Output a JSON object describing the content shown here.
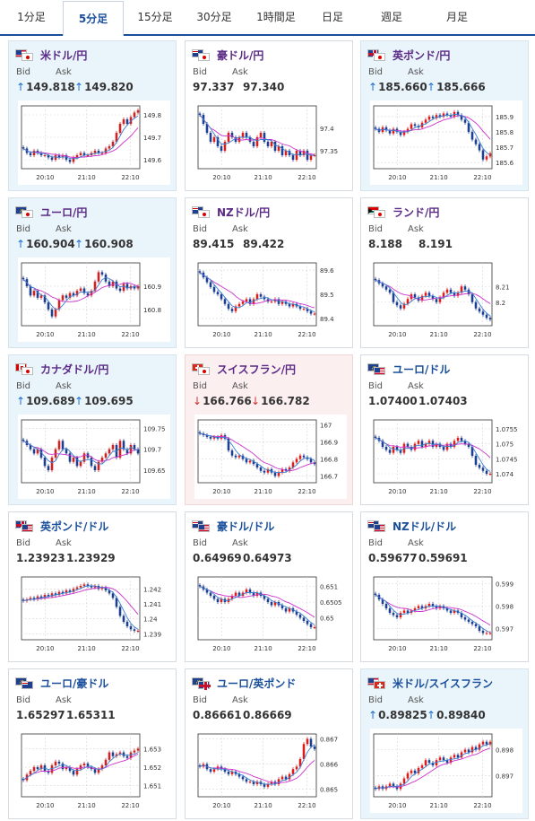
{
  "tabs": [
    {
      "label": "1分足",
      "active": false
    },
    {
      "label": "5分足",
      "active": true
    },
    {
      "label": "15分足",
      "active": false
    },
    {
      "label": "30分足",
      "active": false
    },
    {
      "label": "1時間足",
      "active": false
    },
    {
      "label": "日足",
      "active": false
    },
    {
      "label": "週足",
      "active": false
    },
    {
      "label": "月足",
      "active": false
    }
  ],
  "labels": {
    "bid": "Bid",
    "ask": "Ask"
  },
  "colors": {
    "up_arrow": "#1a6fd0",
    "down_arrow": "#d03030",
    "up_bg": "#eaf4fb",
    "down_bg": "#fbefef",
    "pair_purple": "#5a2a86",
    "pair_blue": "#1a4f9c",
    "candle_up": "#d62020",
    "candle_down": "#1d3f8f",
    "ma_line": "#cc33cc",
    "ma_short": "#3a7fd0"
  },
  "cards": [
    {
      "pair": "米ドル/円",
      "flags": [
        "us",
        "jp"
      ],
      "state": "up",
      "bid": "149.818",
      "ask": "149.820",
      "bid_arrow": "up",
      "ask_arrow": "up",
      "yticks": [
        "149.8",
        "149.7",
        "149.6"
      ],
      "xticks": [
        "20:10",
        "21:10",
        "22:10"
      ],
      "chart_data": {
        "type": "candlestick",
        "ylim": [
          149.56,
          149.84
        ],
        "close": [
          149.65,
          149.63,
          149.62,
          149.64,
          149.63,
          149.62,
          149.62,
          149.61,
          149.6,
          149.62,
          149.61,
          149.62,
          149.6,
          149.59,
          149.61,
          149.62,
          149.63,
          149.62,
          149.62,
          149.63,
          149.64,
          149.63,
          149.63,
          149.65,
          149.66,
          149.68,
          149.72,
          149.76,
          149.78,
          149.76,
          149.79,
          149.81,
          149.82
        ]
      }
    },
    {
      "pair": "豪ドル/円",
      "flags": [
        "au",
        "jp"
      ],
      "state": "none",
      "bid": "97.337",
      "ask": "97.340",
      "bid_arrow": "",
      "ask_arrow": "",
      "yticks": [
        "97.4",
        "97.35"
      ],
      "xticks": [
        "20:10",
        "21:10",
        "22:10"
      ],
      "chart_data": {
        "type": "candlestick",
        "ylim": [
          97.31,
          97.45
        ],
        "close": [
          97.43,
          97.41,
          97.39,
          97.37,
          97.38,
          97.36,
          97.35,
          97.37,
          97.39,
          97.38,
          97.37,
          97.38,
          97.39,
          97.38,
          97.37,
          97.36,
          97.38,
          97.39,
          97.37,
          97.36,
          97.37,
          97.35,
          97.36,
          97.34,
          97.35,
          97.34,
          97.33,
          97.35,
          97.34,
          97.35,
          97.33,
          97.34,
          97.34
        ]
      }
    },
    {
      "pair": "英ポンド/円",
      "flags": [
        "gb",
        "jp"
      ],
      "state": "up",
      "bid": "185.660",
      "ask": "185.666",
      "bid_arrow": "up",
      "ask_arrow": "up",
      "yticks": [
        "185.9",
        "185.8",
        "185.7",
        "185.6"
      ],
      "xticks": [
        "20:10",
        "21:10",
        "22:10"
      ],
      "chart_data": {
        "type": "candlestick",
        "ylim": [
          185.56,
          185.97
        ],
        "close": [
          185.82,
          185.8,
          185.83,
          185.81,
          185.79,
          185.82,
          185.8,
          185.78,
          185.8,
          185.82,
          185.85,
          185.84,
          185.83,
          185.86,
          185.88,
          185.9,
          185.89,
          185.91,
          185.9,
          185.92,
          185.91,
          185.9,
          185.93,
          185.91,
          185.88,
          185.86,
          185.8,
          185.75,
          185.72,
          185.68,
          185.62,
          185.64,
          185.66
        ]
      }
    },
    {
      "pair": "ユーロ/円",
      "flags": [
        "eu",
        "jp"
      ],
      "state": "up",
      "bid": "160.904",
      "ask": "160.908",
      "bid_arrow": "up",
      "ask_arrow": "up",
      "yticks": [
        "160.9",
        "160.8"
      ],
      "xticks": [
        "20:10",
        "21:10",
        "22:10"
      ],
      "chart_data": {
        "type": "candlestick",
        "ylim": [
          160.73,
          161.0
        ],
        "close": [
          160.93,
          160.9,
          160.86,
          160.88,
          160.85,
          160.86,
          160.83,
          160.8,
          160.77,
          160.8,
          160.84,
          160.86,
          160.85,
          160.87,
          160.86,
          160.88,
          160.89,
          160.87,
          160.86,
          160.88,
          160.92,
          160.96,
          160.95,
          160.92,
          160.9,
          160.92,
          160.89,
          160.88,
          160.91,
          160.89,
          160.9,
          160.89,
          160.9
        ]
      }
    },
    {
      "pair": "NZドル/円",
      "flags": [
        "nz",
        "jp"
      ],
      "state": "none",
      "bid": "89.415",
      "ask": "89.422",
      "bid_arrow": "",
      "ask_arrow": "",
      "yticks": [
        "89.6",
        "89.5",
        "89.4"
      ],
      "xticks": [
        "20:10",
        "21:10",
        "22:10"
      ],
      "chart_data": {
        "type": "candlestick",
        "ylim": [
          89.37,
          89.63
        ],
        "close": [
          89.59,
          89.57,
          89.55,
          89.53,
          89.51,
          89.5,
          89.48,
          89.46,
          89.44,
          89.43,
          89.45,
          89.46,
          89.47,
          89.48,
          89.46,
          89.48,
          89.5,
          89.49,
          89.48,
          89.47,
          89.47,
          89.48,
          89.46,
          89.47,
          89.46,
          89.45,
          89.46,
          89.45,
          89.44,
          89.44,
          89.43,
          89.42,
          89.42
        ]
      }
    },
    {
      "pair": "ランド/円",
      "flags": [
        "za",
        "jp"
      ],
      "state": "none",
      "bid": "8.188",
      "ask": "8.191",
      "bid_arrow": "",
      "ask_arrow": "",
      "yticks": [
        "8.21",
        "8.2"
      ],
      "xticks": [
        "20:10",
        "21:10",
        "22:10"
      ],
      "chart_data": {
        "type": "candlestick",
        "ylim": [
          8.185,
          8.225
        ],
        "close": [
          8.214,
          8.212,
          8.21,
          8.208,
          8.206,
          8.2,
          8.198,
          8.196,
          8.199,
          8.202,
          8.205,
          8.203,
          8.201,
          8.204,
          8.206,
          8.204,
          8.202,
          8.2,
          8.203,
          8.206,
          8.208,
          8.206,
          8.204,
          8.206,
          8.21,
          8.208,
          8.205,
          8.2,
          8.196,
          8.194,
          8.192,
          8.19,
          8.189
        ]
      }
    },
    {
      "pair": "カナダドル/円",
      "flags": [
        "ca",
        "jp"
      ],
      "state": "up",
      "bid": "109.689",
      "ask": "109.695",
      "bid_arrow": "up",
      "ask_arrow": "up",
      "yticks": [
        "109.75",
        "109.7",
        "109.65"
      ],
      "xticks": [
        "20:10",
        "21:10",
        "22:10"
      ],
      "chart_data": {
        "type": "candlestick",
        "ylim": [
          109.62,
          109.77
        ],
        "close": [
          109.72,
          109.71,
          109.7,
          109.69,
          109.7,
          109.68,
          109.66,
          109.65,
          109.68,
          109.7,
          109.72,
          109.7,
          109.69,
          109.67,
          109.68,
          109.66,
          109.67,
          109.69,
          109.68,
          109.66,
          109.65,
          109.67,
          109.68,
          109.69,
          109.7,
          109.71,
          109.68,
          109.72,
          109.7,
          109.69,
          109.71,
          109.7,
          109.69
        ]
      }
    },
    {
      "pair": "スイスフラン/円",
      "flags": [
        "ch",
        "jp"
      ],
      "state": "down",
      "bid": "166.766",
      "ask": "166.782",
      "bid_arrow": "down",
      "ask_arrow": "down",
      "yticks": [
        "167",
        "166.9",
        "166.8",
        "166.7"
      ],
      "xticks": [
        "20:10",
        "21:10",
        "22:10"
      ],
      "chart_data": {
        "type": "candlestick",
        "ylim": [
          166.66,
          167.03
        ],
        "close": [
          166.95,
          166.94,
          166.93,
          166.92,
          166.93,
          166.92,
          166.94,
          166.92,
          166.85,
          166.82,
          166.81,
          166.82,
          166.8,
          166.78,
          166.79,
          166.77,
          166.75,
          166.73,
          166.72,
          166.74,
          166.72,
          166.7,
          166.72,
          166.74,
          166.73,
          166.75,
          166.78,
          166.8,
          166.82,
          166.81,
          166.8,
          166.78,
          166.77
        ]
      }
    },
    {
      "pair": "ユーロ/ドル",
      "flags": [
        "eu",
        "us"
      ],
      "state": "none",
      "bid": "1.07400",
      "ask": "1.07403",
      "bid_arrow": "",
      "ask_arrow": "",
      "yticks": [
        "1.0755",
        "1.075",
        "1.0745",
        "1.074"
      ],
      "xticks": [
        "20:10",
        "21:10",
        "22:10"
      ],
      "chart_data": {
        "type": "candlestick",
        "ylim": [
          1.0737,
          1.0758
        ],
        "close": [
          1.0752,
          1.0751,
          1.0749,
          1.0748,
          1.0747,
          1.0749,
          1.0748,
          1.0747,
          1.075,
          1.0749,
          1.0748,
          1.075,
          1.0751,
          1.0749,
          1.075,
          1.0751,
          1.0749,
          1.075,
          1.0749,
          1.0748,
          1.075,
          1.0749,
          1.0751,
          1.0752,
          1.0751,
          1.075,
          1.0749,
          1.0746,
          1.0743,
          1.0742,
          1.0741,
          1.074,
          1.074
        ]
      }
    },
    {
      "pair": "英ポンド/ドル",
      "flags": [
        "gb",
        "us"
      ],
      "state": "none",
      "bid": "1.23923",
      "ask": "1.23929",
      "bid_arrow": "",
      "ask_arrow": "",
      "yticks": [
        "1.242",
        "1.241",
        "1.24",
        "1.239"
      ],
      "xticks": [
        "20:10",
        "21:10",
        "22:10"
      ],
      "chart_data": {
        "type": "candlestick",
        "ylim": [
          1.2386,
          1.2428
        ],
        "close": [
          1.2412,
          1.2413,
          1.2414,
          1.2413,
          1.2415,
          1.2414,
          1.2416,
          1.2415,
          1.2417,
          1.2416,
          1.2418,
          1.2417,
          1.2419,
          1.2418,
          1.242,
          1.2421,
          1.2422,
          1.2423,
          1.2422,
          1.2421,
          1.2422,
          1.242,
          1.2421,
          1.2419,
          1.2417,
          1.2414,
          1.2408,
          1.2402,
          1.2398,
          1.2395,
          1.2393,
          1.2392,
          1.2392
        ]
      }
    },
    {
      "pair": "豪ドル/ドル",
      "flags": [
        "au",
        "us"
      ],
      "state": "none",
      "bid": "0.64969",
      "ask": "0.64973",
      "bid_arrow": "",
      "ask_arrow": "",
      "yticks": [
        "0.651",
        "0.6505",
        "0.65"
      ],
      "xticks": [
        "20:10",
        "21:10",
        "22:10"
      ],
      "chart_data": {
        "type": "candlestick",
        "ylim": [
          0.6493,
          0.6513
        ],
        "close": [
          0.651,
          0.6509,
          0.6508,
          0.6507,
          0.6506,
          0.6505,
          0.6506,
          0.6505,
          0.6506,
          0.6507,
          0.6508,
          0.6507,
          0.6508,
          0.6509,
          0.6508,
          0.6507,
          0.6508,
          0.6507,
          0.6506,
          0.6505,
          0.6504,
          0.6505,
          0.6504,
          0.6503,
          0.6502,
          0.6503,
          0.6502,
          0.6501,
          0.65,
          0.6499,
          0.6498,
          0.6497,
          0.6497
        ]
      }
    },
    {
      "pair": "NZドル/ドル",
      "flags": [
        "nz",
        "us"
      ],
      "state": "none",
      "bid": "0.59677",
      "ask": "0.59691",
      "bid_arrow": "",
      "ask_arrow": "",
      "yticks": [
        "0.599",
        "0.598",
        "0.597"
      ],
      "xticks": [
        "20:10",
        "21:10",
        "22:10"
      ],
      "chart_data": {
        "type": "candlestick",
        "ylim": [
          0.5965,
          0.5993
        ],
        "close": [
          0.5985,
          0.5983,
          0.5981,
          0.5979,
          0.5977,
          0.5976,
          0.5975,
          0.5977,
          0.5978,
          0.5977,
          0.5978,
          0.5979,
          0.598,
          0.5979,
          0.598,
          0.5981,
          0.598,
          0.5979,
          0.598,
          0.5979,
          0.5978,
          0.5977,
          0.5978,
          0.5977,
          0.5975,
          0.5974,
          0.5973,
          0.5972,
          0.5971,
          0.5969,
          0.5968,
          0.5968,
          0.5968
        ]
      }
    },
    {
      "pair": "ユーロ/豪ドル",
      "flags": [
        "eu",
        "au"
      ],
      "state": "none",
      "bid": "1.65297",
      "ask": "1.65311",
      "bid_arrow": "",
      "ask_arrow": "",
      "yticks": [
        "1.653",
        "1.652",
        "1.651"
      ],
      "xticks": [
        "20:10",
        "21:10",
        "22:10"
      ],
      "chart_data": {
        "type": "candlestick",
        "ylim": [
          1.6504,
          1.6538
        ],
        "close": [
          1.6513,
          1.6516,
          1.6518,
          1.652,
          1.6519,
          1.6521,
          1.6518,
          1.6517,
          1.6521,
          1.6523,
          1.6522,
          1.6519,
          1.652,
          1.6518,
          1.6516,
          1.6519,
          1.6521,
          1.6522,
          1.652,
          1.6519,
          1.6517,
          1.6519,
          1.6521,
          1.6524,
          1.6528,
          1.6526,
          1.6527,
          1.6528,
          1.6526,
          1.6525,
          1.6528,
          1.6529,
          1.653
        ]
      }
    },
    {
      "pair": "ユーロ/英ポンド",
      "flags": [
        "eu",
        "gb"
      ],
      "state": "none",
      "bid": "0.86661",
      "ask": "0.86669",
      "bid_arrow": "",
      "ask_arrow": "",
      "yticks": [
        "0.867",
        "0.866",
        "0.865"
      ],
      "xticks": [
        "20:10",
        "21:10",
        "22:10"
      ],
      "chart_data": {
        "type": "candlestick",
        "ylim": [
          0.8647,
          0.8672
        ],
        "close": [
          0.8659,
          0.866,
          0.8658,
          0.8657,
          0.8658,
          0.8659,
          0.8658,
          0.8657,
          0.8656,
          0.8657,
          0.8656,
          0.8655,
          0.8654,
          0.8653,
          0.8653,
          0.8652,
          0.8653,
          0.8652,
          0.8651,
          0.8652,
          0.8653,
          0.8652,
          0.8654,
          0.8655,
          0.8654,
          0.8656,
          0.8658,
          0.8659,
          0.8662,
          0.8668,
          0.867,
          0.8667,
          0.8666
        ]
      }
    },
    {
      "pair": "米ドル/スイスフラン",
      "flags": [
        "us",
        "ch"
      ],
      "state": "up",
      "bid": "0.89825",
      "ask": "0.89840",
      "bid_arrow": "up",
      "ask_arrow": "up",
      "yticks": [
        "0.898",
        "0.897"
      ],
      "xticks": [
        "20:10",
        "21:10",
        "22:10"
      ],
      "chart_data": {
        "type": "candlestick",
        "ylim": [
          0.8962,
          0.8986
        ],
        "close": [
          0.8965,
          0.8966,
          0.8965,
          0.8966,
          0.8967,
          0.8966,
          0.8965,
          0.8967,
          0.8969,
          0.8971,
          0.8972,
          0.8971,
          0.8973,
          0.8974,
          0.8976,
          0.8975,
          0.8974,
          0.8976,
          0.8977,
          0.8976,
          0.8975,
          0.8977,
          0.8978,
          0.8977,
          0.8979,
          0.898,
          0.8979,
          0.8981,
          0.898,
          0.8982,
          0.8983,
          0.8982,
          0.8983
        ]
      }
    }
  ]
}
